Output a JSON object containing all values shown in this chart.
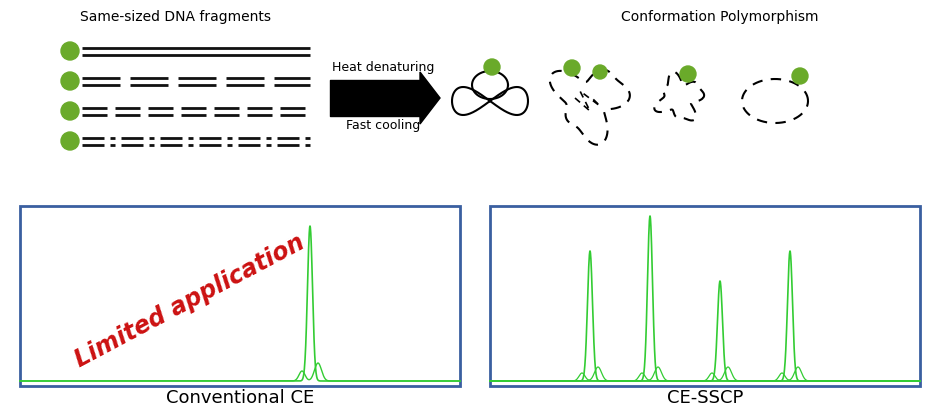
{
  "bg_color": "#ffffff",
  "dna_label": "Same-sized DNA fragments",
  "conformation_label": "Conformation Polymorphism",
  "heat_label": "Heat denaturing",
  "cool_label": "Fast cooling",
  "ce_label": "Conventional CE",
  "cesscp_label": "CE-SSCP",
  "limited_text": "Limited application",
  "dot_color": "#6aaa2a",
  "line_color": "#111111",
  "peak_color": "#33cc33",
  "box_border_color": "#3a5fa0",
  "limited_color": "#cc1111",
  "figw": 9.39,
  "figh": 4.16,
  "dpi": 100
}
